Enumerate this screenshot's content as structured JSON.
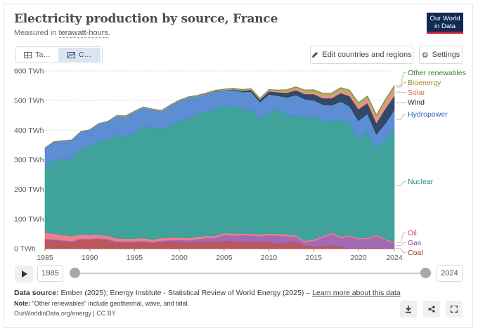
{
  "header": {
    "title": "Electricity production by source, France",
    "subtitle_prefix": "Measured in ",
    "subtitle_unit": "terawatt-hours",
    "subtitle_suffix": ".",
    "logo_line1": "Our World",
    "logo_line2": "in Data"
  },
  "controls": {
    "tab_table": "Ta…",
    "tab_chart": "C…",
    "edit_button": "Edit countries and regions",
    "settings_button": "Settings"
  },
  "timeline": {
    "start_year": "1985",
    "end_year": "2024"
  },
  "footer": {
    "source_label": "Data source:",
    "source_text": "Ember (2025); Energy Institute - Statistical Review of World Energy (2025) –",
    "source_link": "Learn more about this data",
    "note_label": "Note:",
    "note_text": "\"Other renewables\" include geothermal, wave, and tidal.",
    "url": "OurWorldinData.org/energy | CC BY"
  },
  "chart_data": {
    "type": "area",
    "stacked": true,
    "title": "Electricity production by source, France",
    "unit": "TWh",
    "ylim": [
      0,
      600
    ],
    "yticks": [
      "0 TWh",
      "100 TWh",
      "200 TWh",
      "300 TWh",
      "400 TWh",
      "500 TWh",
      "600 TWh"
    ],
    "ytick_values": [
      0,
      100,
      200,
      300,
      400,
      500,
      600
    ],
    "xticks": [
      "1985",
      "1990",
      "1995",
      "2000",
      "2005",
      "2010",
      "2015",
      "2020",
      "2024"
    ],
    "xtick_values": [
      1985,
      1990,
      1995,
      2000,
      2005,
      2010,
      2015,
      2020,
      2024
    ],
    "grid": true,
    "legend_placement": "right (labels at series ends)",
    "x": [
      1985,
      1986,
      1987,
      1988,
      1989,
      1990,
      1991,
      1992,
      1993,
      1994,
      1995,
      1996,
      1997,
      1998,
      1999,
      2000,
      2001,
      2002,
      2003,
      2004,
      2005,
      2006,
      2007,
      2008,
      2009,
      2010,
      2011,
      2012,
      2013,
      2014,
      2015,
      2016,
      2017,
      2018,
      2019,
      2020,
      2021,
      2022,
      2023,
      2024
    ],
    "series": [
      {
        "name": "Coal",
        "color": "#b5484f",
        "values": [
          30,
          28,
          25,
          22,
          30,
          30,
          32,
          28,
          20,
          20,
          20,
          22,
          18,
          22,
          24,
          24,
          20,
          22,
          24,
          22,
          26,
          24,
          24,
          22,
          22,
          22,
          16,
          20,
          22,
          10,
          8,
          8,
          10,
          6,
          2,
          1,
          3,
          3,
          1,
          1
        ]
      },
      {
        "name": "Gas",
        "color": "#9a5dae",
        "values": [
          3,
          3,
          3,
          3,
          3,
          3,
          3,
          4,
          4,
          4,
          4,
          4,
          4,
          5,
          5,
          6,
          8,
          10,
          12,
          14,
          20,
          20,
          22,
          22,
          20,
          24,
          28,
          22,
          18,
          12,
          18,
          30,
          40,
          30,
          40,
          30,
          30,
          40,
          28,
          18
        ]
      },
      {
        "name": "Oil",
        "color": "#e97685",
        "values": [
          22,
          20,
          18,
          18,
          16,
          14,
          13,
          12,
          11,
          10,
          10,
          10,
          9,
          9,
          9,
          8,
          8,
          8,
          7,
          7,
          7,
          7,
          6,
          6,
          6,
          6,
          6,
          6,
          5,
          5,
          5,
          5,
          5,
          5,
          4,
          4,
          4,
          4,
          4,
          4
        ]
      },
      {
        "name": "Nuclear",
        "color": "#2f9b94",
        "values": [
          224,
          249,
          255,
          258,
          290,
          298,
          315,
          322,
          350,
          342,
          358,
          378,
          376,
          368,
          375,
          395,
          401,
          416,
          420,
          427,
          430,
          429,
          420,
          418,
          390,
          407,
          421,
          404,
          403,
          416,
          416,
          384,
          379,
          393,
          379,
          335,
          361,
          294,
          336,
          379
        ]
      },
      {
        "name": "Hydropower",
        "color": "#4f84cf",
        "values": [
          60,
          60,
          62,
          65,
          55,
          55,
          58,
          62,
          62,
          70,
          70,
          62,
          62,
          60,
          70,
          66,
          73,
          59,
          60,
          60,
          51,
          56,
          57,
          62,
          57,
          62,
          45,
          59,
          71,
          62,
          54,
          60,
          50,
          63,
          56,
          62,
          58,
          45,
          54,
          67
        ]
      },
      {
        "name": "Wind",
        "color": "#23385a",
        "values": [
          0,
          0,
          0,
          0,
          0,
          0,
          0,
          0,
          0,
          0,
          0,
          0,
          0,
          0,
          0,
          0,
          0,
          0,
          0,
          1,
          1,
          2,
          4,
          6,
          8,
          10,
          12,
          15,
          16,
          17,
          21,
          21,
          24,
          28,
          34,
          39,
          36,
          38,
          50,
          47
        ]
      },
      {
        "name": "Solar",
        "color": "#e68d78",
        "values": [
          0,
          0,
          0,
          0,
          0,
          0,
          0,
          0,
          0,
          0,
          0,
          0,
          0,
          0,
          0,
          0,
          0,
          0,
          0,
          0,
          0,
          0,
          0,
          0,
          0.2,
          0.6,
          2,
          4,
          5,
          6,
          7,
          8,
          9,
          10,
          11,
          12,
          14,
          18,
          21,
          25
        ]
      },
      {
        "name": "Bioenergy",
        "color": "#b5a84a",
        "values": [
          1,
          1,
          1,
          1,
          1,
          1,
          1,
          1,
          2,
          2,
          2,
          2,
          2,
          2,
          2,
          2,
          2,
          2,
          2,
          3,
          3,
          3,
          4,
          4,
          4,
          5,
          5,
          6,
          6,
          7,
          7,
          8,
          8,
          8,
          9,
          9,
          9,
          9,
          9,
          9
        ]
      },
      {
        "name": "Other renewables",
        "color": "#4a8a3a",
        "values": [
          0.5,
          0.5,
          0.5,
          0.5,
          0.5,
          0.5,
          0.5,
          0.5,
          0.5,
          0.5,
          0.5,
          0.5,
          0.5,
          0.5,
          0.5,
          0.5,
          0.5,
          0.5,
          0.5,
          0.5,
          0.5,
          0.5,
          0.5,
          0.5,
          0.5,
          0.5,
          0.5,
          0.5,
          0.5,
          0.5,
          0.5,
          0.5,
          0.5,
          0.5,
          0.5,
          0.5,
          0.5,
          0.5,
          0.5,
          0.5
        ]
      }
    ],
    "legend_order_top_to_bottom": [
      "Other renewables",
      "Bioenergy",
      "Solar",
      "Wind",
      "Hydropower",
      "Nuclear",
      "Oil",
      "Gas",
      "Coal"
    ]
  }
}
